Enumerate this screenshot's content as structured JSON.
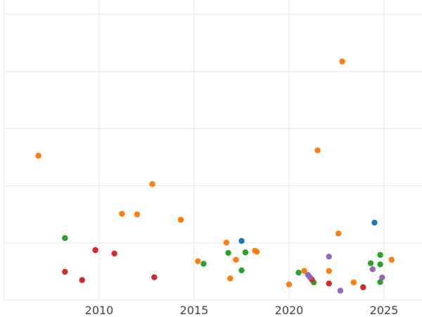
{
  "chart_data": {
    "type": "scatter",
    "title": "",
    "xlabel": "",
    "ylabel": "",
    "xlim": [
      2005,
      2027
    ],
    "ylim": [
      0,
      105
    ],
    "xticks": [
      2010,
      2015,
      2020,
      2025
    ],
    "xtick_labels": [
      "2010",
      "2015",
      "2020",
      "2025"
    ],
    "yticks": [
      0,
      20,
      40,
      60,
      80,
      100
    ],
    "show_ytick_labels": false,
    "grid": true,
    "colors": {
      "blue": "#1f77b4",
      "orange": "#ff7f0e",
      "green": "#2ca02c",
      "red": "#d62728",
      "purple": "#9467bd"
    },
    "series": [
      {
        "color": "blue",
        "points": [
          [
            2017.5,
            20.7
          ],
          [
            2024.5,
            27.1
          ]
        ]
      },
      {
        "color": "orange",
        "points": [
          [
            2006.8,
            50.5
          ],
          [
            2011.2,
            30.2
          ],
          [
            2012.0,
            30.0
          ],
          [
            2012.8,
            40.6
          ],
          [
            2014.3,
            28.1
          ],
          [
            2015.2,
            13.6
          ],
          [
            2016.7,
            20.1
          ],
          [
            2016.9,
            7.6
          ],
          [
            2017.2,
            14.1
          ],
          [
            2018.2,
            17.3
          ],
          [
            2018.3,
            16.9
          ],
          [
            2020.0,
            5.5
          ],
          [
            2020.8,
            10.2
          ],
          [
            2021.5,
            52.4
          ],
          [
            2022.1,
            10.2
          ],
          [
            2022.6,
            23.3
          ],
          [
            2022.8,
            83.5
          ],
          [
            2023.4,
            6.2
          ],
          [
            2025.4,
            14.1
          ]
        ]
      },
      {
        "color": "green",
        "points": [
          [
            2008.2,
            21.7
          ],
          [
            2015.5,
            12.7
          ],
          [
            2016.8,
            16.5
          ],
          [
            2017.5,
            10.4
          ],
          [
            2017.7,
            16.7
          ],
          [
            2020.5,
            9.6
          ],
          [
            2021.3,
            6.2
          ],
          [
            2024.3,
            12.9
          ],
          [
            2024.8,
            15.8
          ],
          [
            2024.8,
            12.5
          ],
          [
            2024.8,
            6.3
          ]
        ]
      },
      {
        "color": "red",
        "points": [
          [
            2008.2,
            9.9
          ],
          [
            2009.1,
            7.0
          ],
          [
            2009.8,
            17.5
          ],
          [
            2010.8,
            16.3
          ],
          [
            2012.9,
            8.0
          ],
          [
            2021.2,
            7.2
          ],
          [
            2022.1,
            5.8
          ],
          [
            2023.9,
            4.5
          ]
        ]
      },
      {
        "color": "purple",
        "points": [
          [
            2021.0,
            8.8
          ],
          [
            2021.1,
            8.0
          ],
          [
            2022.1,
            15.2
          ],
          [
            2022.7,
            3.3
          ],
          [
            2024.4,
            10.8
          ],
          [
            2024.9,
            7.9
          ]
        ]
      }
    ]
  }
}
